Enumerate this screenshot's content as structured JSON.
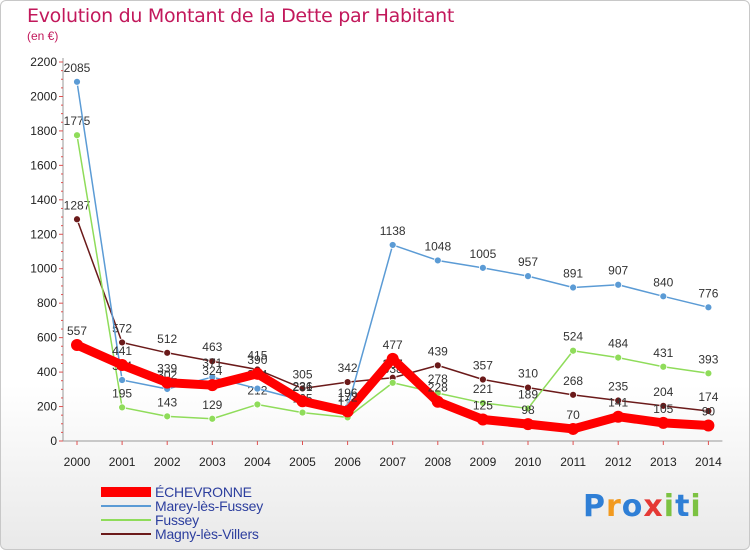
{
  "title": "Evolution du Montant de la Dette par Habitant",
  "subtitle": "(en €)",
  "logo": {
    "text": "Proxiti",
    "colors": [
      "#2f7fd6",
      "#f29a1f",
      "#2f7fd6",
      "#e53935",
      "#7cc242",
      "#2f7fd6",
      "#7cc242"
    ]
  },
  "chart_data": {
    "type": "line",
    "x": [
      "2000",
      "2001",
      "2002",
      "2003",
      "2004",
      "2005",
      "2006",
      "2007",
      "2008",
      "2009",
      "2010",
      "2011",
      "2012",
      "2013",
      "2014"
    ],
    "ylim": [
      0,
      2200
    ],
    "yticks": [
      "0",
      "200",
      "400",
      "600",
      "800",
      "1000",
      "1200",
      "1400",
      "1600",
      "1800",
      "2000",
      "2200"
    ],
    "grid": false,
    "legend_position": "bottom-left",
    "series": [
      {
        "name": "Magny-lès-Villers",
        "color": "#6b1a1a",
        "values": [
          1287,
          572,
          512,
          463,
          415,
          305,
          342,
          367,
          439,
          357,
          310,
          268,
          235,
          204,
          174
        ],
        "labels": [
          "1287",
          "572",
          "512",
          "463",
          "415",
          "305",
          "342",
          "367",
          "439",
          "357",
          "310",
          "268",
          "235",
          "204",
          "174"
        ]
      },
      {
        "name": "Fussey",
        "color": "#8fdc5a",
        "values": [
          1775,
          195,
          143,
          129,
          212,
          165,
          137,
          338,
          278,
          221,
          189,
          524,
          484,
          431,
          393
        ],
        "labels": [
          "1775",
          "195",
          "143",
          "129",
          "212",
          "165",
          "137",
          "338",
          "278",
          "221",
          "189",
          "524",
          "484",
          "431",
          "393"
        ]
      },
      {
        "name": "Marey-lès-Fussey",
        "color": "#5b9bd5",
        "values": [
          2085,
          354,
          302,
          371,
          304,
          236,
          196,
          1138,
          1048,
          1005,
          957,
          891,
          907,
          840,
          776
        ],
        "labels": [
          "2085",
          "354",
          "302",
          "371",
          "304",
          "236",
          "196",
          "1138",
          "1048",
          "1005",
          "957",
          "891",
          "907",
          "840",
          "776"
        ]
      },
      {
        "name": "ÉCHEVRONNE",
        "color": "#ff0000",
        "values": [
          557,
          441,
          339,
          324,
          390,
          231,
          172,
          477,
          228,
          125,
          98,
          70,
          141,
          105,
          90
        ],
        "labels": [
          "557",
          "441",
          "339",
          "324",
          "390",
          "231",
          "172",
          "477",
          "228",
          "125",
          "98",
          "70",
          "141",
          "105",
          "90"
        ]
      }
    ]
  },
  "legend": [
    {
      "label": "ÉCHEVRONNE",
      "color": "#ff0000",
      "thick": true
    },
    {
      "label": "Marey-lès-Fussey",
      "color": "#5b9bd5",
      "thick": false
    },
    {
      "label": "Fussey",
      "color": "#8fdc5a",
      "thick": false
    },
    {
      "label": "Magny-lès-Villers",
      "color": "#6b1a1a",
      "thick": false
    }
  ]
}
